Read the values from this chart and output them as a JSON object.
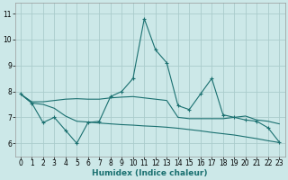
{
  "title": "",
  "xlabel": "Humidex (Indice chaleur)",
  "ylabel": "",
  "bg_color": "#cce8e8",
  "grid_color": "#aacccc",
  "line_color": "#1a7070",
  "xlim": [
    -0.5,
    23.5
  ],
  "ylim": [
    5.5,
    11.4
  ],
  "yticks": [
    6,
    7,
    8,
    9,
    10,
    11
  ],
  "xticks": [
    0,
    1,
    2,
    3,
    4,
    5,
    6,
    7,
    8,
    9,
    10,
    11,
    12,
    13,
    14,
    15,
    16,
    17,
    18,
    19,
    20,
    21,
    22,
    23
  ],
  "line1_x": [
    0,
    1,
    2,
    3,
    4,
    5,
    6,
    7,
    8,
    9,
    10,
    11,
    12,
    13,
    14,
    15,
    16,
    17,
    18,
    19,
    20,
    21,
    22,
    23
  ],
  "line1_y": [
    7.9,
    7.55,
    6.8,
    7.0,
    6.5,
    6.0,
    6.8,
    6.85,
    7.8,
    8.0,
    8.5,
    10.8,
    9.6,
    9.1,
    7.45,
    7.3,
    7.9,
    8.5,
    7.1,
    7.0,
    6.9,
    6.85,
    6.6,
    6.05
  ],
  "line2_x": [
    0,
    1,
    2,
    3,
    4,
    5,
    6,
    7,
    8,
    9,
    10,
    11,
    12,
    13,
    14,
    15,
    16,
    17,
    18,
    19,
    20,
    21,
    22,
    23
  ],
  "line2_y": [
    7.9,
    7.6,
    7.6,
    7.65,
    7.7,
    7.72,
    7.7,
    7.7,
    7.75,
    7.78,
    7.8,
    7.75,
    7.7,
    7.65,
    7.0,
    6.95,
    6.95,
    6.95,
    6.95,
    7.0,
    7.05,
    6.9,
    6.85,
    6.75
  ],
  "line3_x": [
    0,
    1,
    2,
    3,
    4,
    5,
    6,
    7,
    8,
    9,
    10,
    11,
    12,
    13,
    14,
    15,
    16,
    17,
    18,
    19,
    20,
    21,
    22,
    23
  ],
  "line3_y": [
    7.9,
    7.55,
    7.5,
    7.35,
    7.05,
    6.85,
    6.82,
    6.78,
    6.75,
    6.72,
    6.7,
    6.67,
    6.65,
    6.62,
    6.58,
    6.53,
    6.48,
    6.42,
    6.37,
    6.32,
    6.25,
    6.18,
    6.1,
    6.03
  ]
}
